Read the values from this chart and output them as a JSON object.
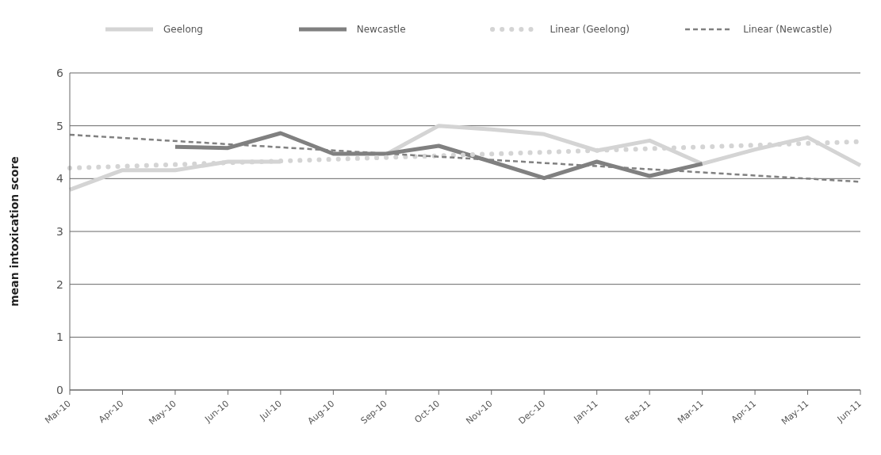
{
  "chart_data": {
    "type": "line",
    "ylabel": "mean intoxication score",
    "categories": [
      "Mar-10",
      "Apr-10",
      "May-10",
      "Jun-10",
      "Jul-10",
      "Aug-10",
      "Sep-10",
      "Oct-10",
      "Nov-10",
      "Dec-10",
      "Jan-11",
      "Feb-11",
      "Mar-11",
      "Apr-11",
      "May-11",
      "Jun-11"
    ],
    "series": [
      {
        "name": "Geelong",
        "color": "#d4d4d4",
        "line_style": "solid",
        "values": [
          3.79,
          4.16,
          4.16,
          4.32,
          4.32,
          null,
          4.46,
          5.0,
          4.93,
          4.84,
          4.53,
          4.72,
          4.28,
          4.55,
          4.78,
          4.25
        ]
      },
      {
        "name": "Newcastle",
        "color": "#808080",
        "line_style": "solid",
        "values": [
          null,
          null,
          4.6,
          4.58,
          4.86,
          4.47,
          4.47,
          4.62,
          4.32,
          4.01,
          4.32,
          4.05,
          4.28,
          null,
          null,
          null
        ]
      },
      {
        "name": "Linear (Geelong)",
        "color": "#d4d4d4",
        "line_style": "dotted",
        "x": [
          "Mar-10",
          "Jun-11"
        ],
        "values": [
          4.2,
          4.7
        ]
      },
      {
        "name": "Linear (Newcastle)",
        "color": "#808080",
        "line_style": "dashed",
        "x": [
          "Mar-10",
          "Jun-11"
        ],
        "values": [
          4.83,
          3.94
        ]
      }
    ],
    "ylim": [
      0,
      6
    ],
    "yticks": [
      0,
      1,
      2,
      3,
      4,
      5,
      6
    ],
    "grid": "y",
    "legend": "top",
    "marker": "none"
  }
}
